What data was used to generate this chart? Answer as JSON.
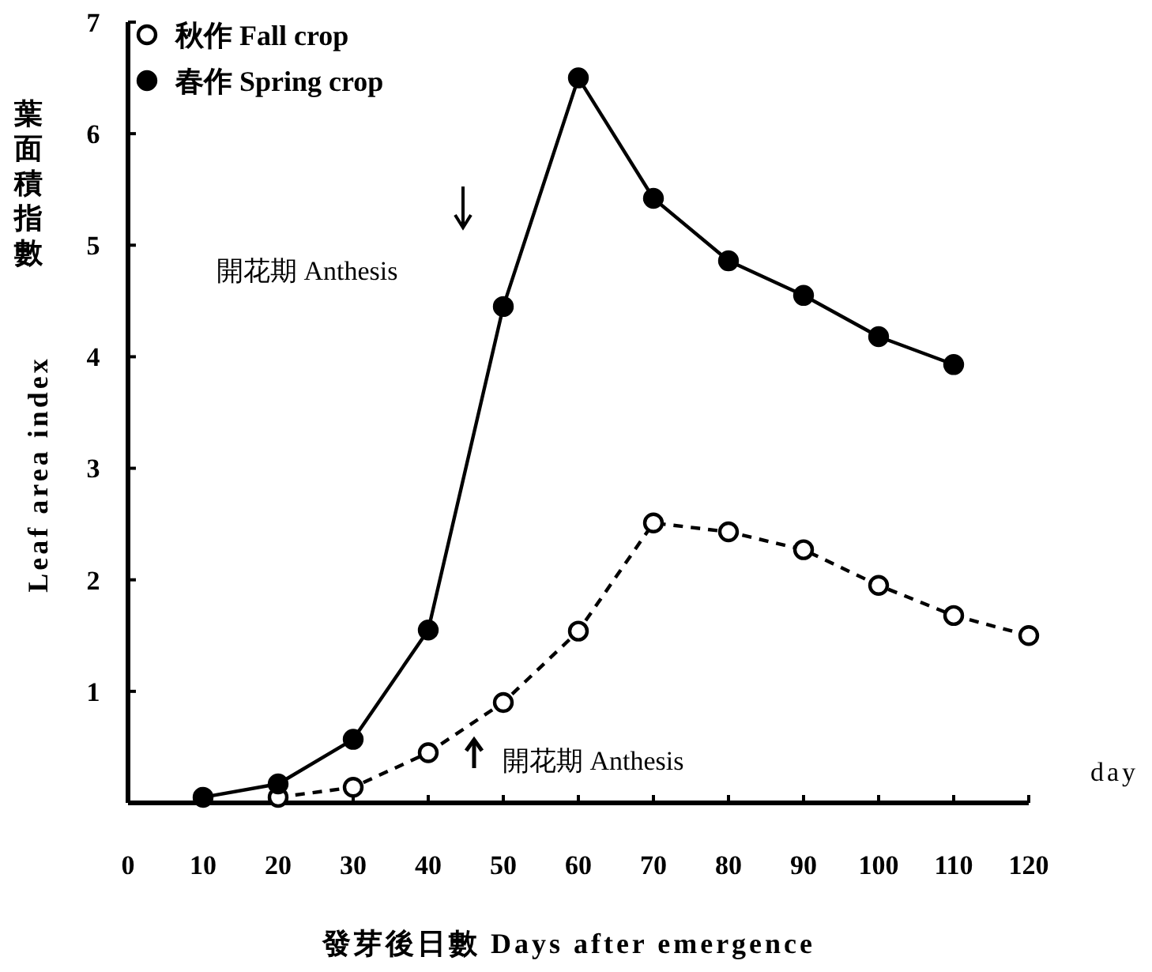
{
  "chart_data": {
    "type": "line",
    "xlabel": "發芽後日數  Days after emergence",
    "ylabel": "Leaf area index",
    "annotations": [
      "葉面積指數",
      "開花期 Anthesis",
      "開花期 Anthesis",
      "day"
    ],
    "xlim": [
      0,
      120
    ],
    "xticks": [
      0,
      10,
      20,
      30,
      40,
      50,
      60,
      70,
      80,
      90,
      100,
      110,
      120
    ],
    "ylim": [
      0,
      7
    ],
    "yticks": [
      1,
      2,
      3,
      4,
      5,
      6,
      7
    ],
    "marker": "circle",
    "legend": "top left",
    "grid": false,
    "series": [
      {
        "name": "秋作 Fall crop",
        "color": "#000000",
        "line_style": "dashed",
        "x": [
          20,
          30,
          40,
          50,
          60,
          70,
          80,
          90,
          100,
          110,
          120
        ],
        "values": [
          0.05,
          0.14,
          0.45,
          0.9,
          1.54,
          2.51,
          2.43,
          2.27,
          1.95,
          1.68,
          1.5
        ]
      },
      {
        "name": "春作 Spring crop",
        "color": "#000000",
        "line_style": "solid",
        "x": [
          10,
          20,
          30,
          40,
          50,
          60,
          70,
          80,
          90,
          100,
          110
        ],
        "values": [
          0.05,
          0.17,
          0.57,
          1.55,
          4.45,
          6.5,
          5.42,
          4.86,
          4.55,
          4.18,
          3.93
        ]
      }
    ]
  }
}
